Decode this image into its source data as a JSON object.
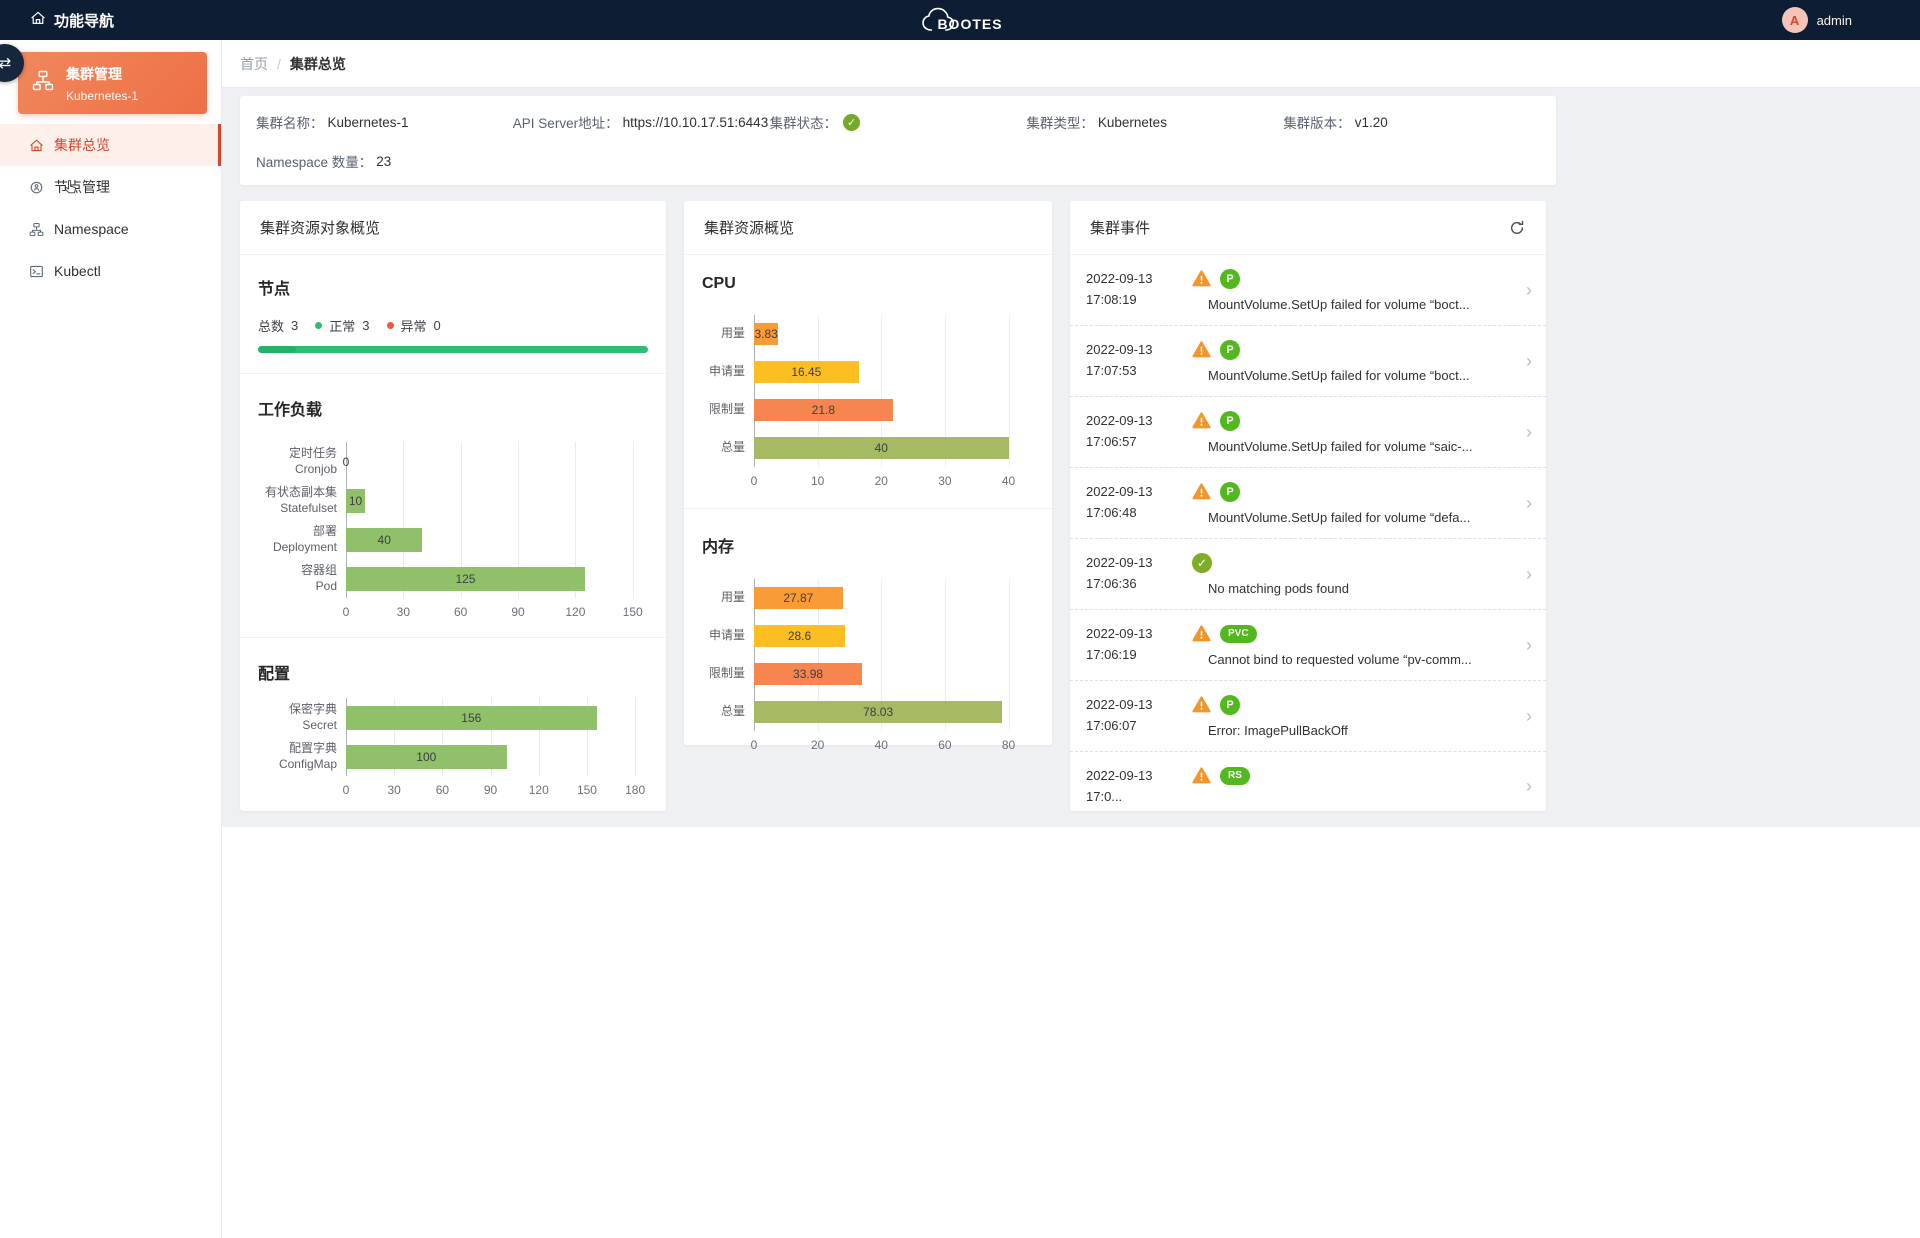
{
  "icons": {
    "check": "✓",
    "chevron": "›",
    "collapse": "⇄"
  },
  "topbar": {
    "nav_label": "功能导航",
    "logo_text": "BOOTES",
    "user_initial": "A",
    "user_name": "admin"
  },
  "sidebar": {
    "cluster_card": {
      "title": "集群管理",
      "subtitle": "Kubernetes-1"
    },
    "items": [
      {
        "label": "集群总览",
        "active": true
      },
      {
        "label": "节点管理",
        "active": false
      },
      {
        "label": "Namespace",
        "active": false
      },
      {
        "label": "Kubectl",
        "active": false
      }
    ]
  },
  "breadcrumb": {
    "home": "首页",
    "separator": "/",
    "current": "集群总览"
  },
  "cluster_info": {
    "name_label": "集群名称：",
    "name_value": "Kubernetes-1",
    "api_label": "API Server地址：",
    "api_value": "https://10.10.17.51:6443",
    "status_label": "集群状态：",
    "type_label": "集群类型：",
    "type_value": "Kubernetes",
    "version_label": "集群版本：",
    "version_value": "v1.20",
    "ns_label": "Namespace 数量：",
    "ns_value": "23"
  },
  "panels": {
    "objects": {
      "title": "集群资源对象概览",
      "node": {
        "title": "节点",
        "total_label": "总数",
        "total_value": "3",
        "ok_label": "正常",
        "ok_value": "3",
        "bad_label": "异常",
        "bad_value": "0"
      },
      "workload": {
        "title": "工作负载",
        "chart": {
          "type": "bar",
          "categories": [
            [
              "定时任务",
              "Cronjob"
            ],
            [
              "有状态副本集",
              "Statefulset"
            ],
            [
              "部署",
              "Deployment"
            ],
            [
              "容器组",
              "Pod"
            ]
          ],
          "values": [
            0,
            10,
            40,
            125
          ],
          "ticks": [
            0,
            30,
            60,
            90,
            120,
            150
          ],
          "axis_max": 158,
          "colors": [
            "#90c16a"
          ]
        }
      },
      "config": {
        "title": "配置",
        "chart": {
          "type": "bar",
          "categories": [
            [
              "保密字典",
              "Secret"
            ],
            [
              "配置字典",
              "ConfigMap"
            ]
          ],
          "values": [
            156,
            100
          ],
          "ticks": [
            0,
            30,
            60,
            90,
            120,
            150,
            180
          ],
          "axis_max": 188,
          "colors": [
            "#90c16a"
          ]
        }
      }
    },
    "resources": {
      "title": "集群资源概览",
      "cpu": {
        "title": "CPU",
        "chart": {
          "type": "bar",
          "categories": [
            [
              "用量"
            ],
            [
              "申请量"
            ],
            [
              "限制量"
            ],
            [
              "总量"
            ]
          ],
          "values": [
            3.83,
            16.45,
            21.8,
            40
          ],
          "ticks": [
            0,
            10,
            20,
            30,
            40
          ],
          "axis_max": 44,
          "colors": [
            "#f99b36",
            "#fcbe23",
            "#f6854f",
            "#a5ba63"
          ]
        }
      },
      "memory": {
        "title": "内存",
        "chart": {
          "type": "bar",
          "categories": [
            [
              "用量"
            ],
            [
              "申请量"
            ],
            [
              "限制量"
            ],
            [
              "总量"
            ]
          ],
          "values": [
            27.87,
            28.6,
            33.98,
            78.03
          ],
          "ticks": [
            0,
            20,
            40,
            60,
            80
          ],
          "axis_max": 88,
          "colors": [
            "#f99b36",
            "#fcbe23",
            "#f6854f",
            "#a5ba63"
          ]
        }
      }
    },
    "events": {
      "title": "集群事件",
      "items": [
        {
          "date": "2022-09-13",
          "time": "17:08:19",
          "warn": true,
          "badge": "P",
          "badge_shape": "circle",
          "check": false,
          "message": "MountVolume.SetUp failed for volume “boct..."
        },
        {
          "date": "2022-09-13",
          "time": "17:07:53",
          "warn": true,
          "badge": "P",
          "badge_shape": "circle",
          "check": false,
          "message": "MountVolume.SetUp failed for volume “boct..."
        },
        {
          "date": "2022-09-13",
          "time": "17:06:57",
          "warn": true,
          "badge": "P",
          "badge_shape": "circle",
          "check": false,
          "message": "MountVolume.SetUp failed for volume “saic-..."
        },
        {
          "date": "2022-09-13",
          "time": "17:06:48",
          "warn": true,
          "badge": "P",
          "badge_shape": "circle",
          "check": false,
          "message": "MountVolume.SetUp failed for volume “defa..."
        },
        {
          "date": "2022-09-13",
          "time": "17:06:36",
          "warn": false,
          "badge": "",
          "badge_shape": "",
          "check": true,
          "message": "No matching pods found"
        },
        {
          "date": "2022-09-13",
          "time": "17:06:19",
          "warn": true,
          "badge": "PVC",
          "badge_shape": "pill",
          "check": false,
          "message": "Cannot bind to requested volume “pv-comm..."
        },
        {
          "date": "2022-09-13",
          "time": "17:06:07",
          "warn": true,
          "badge": "P",
          "badge_shape": "circle",
          "check": false,
          "message": "Error: ImagePullBackOff"
        },
        {
          "date": "2022-09-13",
          "time": "17:0...",
          "warn": true,
          "badge": "RS",
          "badge_shape": "pill",
          "check": false,
          "message": ""
        }
      ]
    }
  }
}
